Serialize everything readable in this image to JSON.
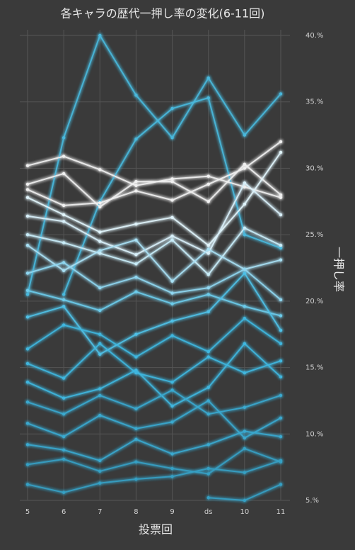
{
  "chart_data": {
    "type": "line",
    "title": "各キャラの歴代一押し率の変化(6-11回)",
    "x_label": "投票回",
    "y_label": "一押し率",
    "categories": [
      "5",
      "6",
      "7",
      "8",
      "9",
      "ds",
      "10",
      "11"
    ],
    "ylim": [
      5,
      40
    ],
    "yticks": [
      {
        "value": 5,
        "label": "5.%"
      },
      {
        "value": 10,
        "label": "10.%"
      },
      {
        "value": 15,
        "label": "15.%"
      },
      {
        "value": 20,
        "label": "20.%"
      },
      {
        "value": 25,
        "label": "25.%"
      },
      {
        "value": 30,
        "label": "30.%"
      },
      {
        "value": 35,
        "label": "35.%"
      },
      {
        "value": 40,
        "label": "40.%"
      }
    ],
    "grid": true,
    "series": [
      {
        "color": "#49b8dc",
        "values": [
          20.5,
          32.3,
          40.0,
          35.5,
          32.3,
          36.8,
          32.5,
          35.6
        ]
      },
      {
        "color": "#49b8dc",
        "values": [
          null,
          20.5,
          27.5,
          32.2,
          34.5,
          35.3,
          25.0,
          24.0
        ]
      },
      {
        "color": "#f0f0f0",
        "values": [
          30.2,
          30.9,
          29.9,
          28.7,
          29.2,
          29.4,
          28.6,
          27.8
        ]
      },
      {
        "color": "#f0f0f0",
        "values": [
          28.8,
          29.6,
          27.1,
          29.0,
          29.0,
          27.5,
          30.3,
          28.0
        ]
      },
      {
        "color": "#f0f0f0",
        "values": [
          28.4,
          27.2,
          27.4,
          28.3,
          27.6,
          28.8,
          30.0,
          32.0
        ]
      },
      {
        "color": "#e0f4fb",
        "values": [
          27.8,
          26.5,
          25.2,
          25.8,
          26.3,
          24.2,
          27.3,
          31.2
        ]
      },
      {
        "color": "#d8f0fa",
        "values": [
          26.4,
          26.0,
          24.5,
          23.5,
          24.9,
          23.6,
          28.9,
          26.5
        ]
      },
      {
        "color": "#c8ecf8",
        "values": [
          25.0,
          24.4,
          23.6,
          22.8,
          24.6,
          22.0,
          25.5,
          24.2
        ]
      },
      {
        "color": "#a8e0f4",
        "values": [
          24.2,
          22.3,
          23.8,
          24.6,
          21.5,
          23.9,
          22.4,
          23.1
        ]
      },
      {
        "color": "#8fd6f0",
        "values": [
          22.1,
          22.9,
          21.0,
          21.8,
          20.6,
          21.0,
          22.4,
          20.1
        ]
      },
      {
        "color": "#6ccbea",
        "values": [
          20.8,
          20.1,
          19.3,
          20.7,
          19.8,
          20.5,
          19.6,
          18.9
        ]
      },
      {
        "color": "#4fc0e6",
        "values": [
          18.8,
          19.6,
          16.0,
          17.5,
          18.5,
          19.2,
          22.1,
          17.8
        ]
      },
      {
        "color": "#3fb6de",
        "values": [
          16.4,
          18.2,
          17.5,
          15.8,
          17.4,
          16.2,
          18.7,
          16.8
        ]
      },
      {
        "color": "#3fb6de",
        "values": [
          15.3,
          14.2,
          16.8,
          14.6,
          13.9,
          15.8,
          14.6,
          15.5
        ]
      },
      {
        "color": "#3fb6de",
        "values": [
          13.9,
          12.7,
          13.4,
          14.8,
          12.1,
          13.5,
          16.8,
          14.3
        ]
      },
      {
        "color": "#3aa9cf",
        "values": [
          12.4,
          11.5,
          12.9,
          11.9,
          13.3,
          11.5,
          12.0,
          12.9
        ]
      },
      {
        "color": "#3aa9cf",
        "values": [
          10.8,
          9.8,
          11.4,
          10.4,
          10.9,
          12.5,
          9.7,
          11.2
        ]
      },
      {
        "color": "#3aa9cf",
        "values": [
          9.2,
          8.8,
          8.0,
          9.6,
          8.5,
          9.2,
          10.2,
          9.8
        ]
      },
      {
        "color": "#36a0c4",
        "values": [
          7.7,
          8.1,
          7.2,
          7.9,
          7.4,
          7.0,
          8.9,
          7.9
        ]
      },
      {
        "color": "#36a0c4",
        "values": [
          6.2,
          5.6,
          6.3,
          6.6,
          6.8,
          7.4,
          7.1,
          8.0
        ]
      },
      {
        "color": "#36a0c4",
        "values": [
          null,
          null,
          null,
          null,
          null,
          5.2,
          5.0,
          6.2
        ]
      }
    ]
  }
}
